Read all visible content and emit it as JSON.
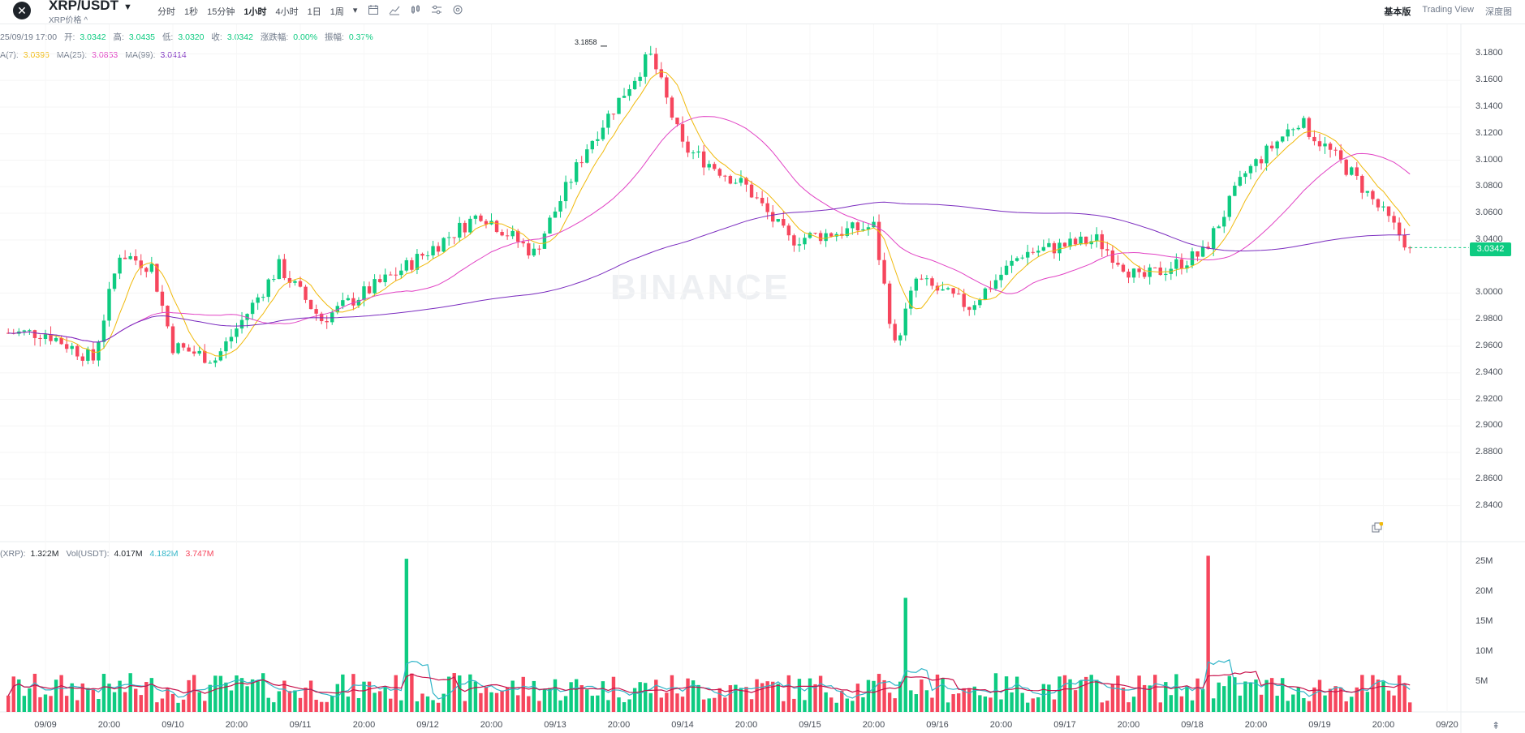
{
  "header": {
    "close_icon": "close-icon",
    "pair": "XRP/USDT",
    "pair_caret": "▼",
    "pair_sub": "XRP价格 ^",
    "intervals": [
      {
        "label": "分时",
        "active": false
      },
      {
        "label": "1秒",
        "active": false
      },
      {
        "label": "15分钟",
        "active": false
      },
      {
        "label": "1小时",
        "active": true
      },
      {
        "label": "4小时",
        "active": false
      },
      {
        "label": "1日",
        "active": false
      },
      {
        "label": "1周",
        "active": false
      },
      {
        "label": "▾",
        "active": false
      }
    ],
    "tool_icons": [
      "calendar-icon",
      "line-chart-icon",
      "candle-icon",
      "settings-sliders-icon",
      "gear-icon"
    ],
    "views": [
      {
        "label": "基本版",
        "active": true
      },
      {
        "label": "Trading View",
        "active": false
      },
      {
        "label": "深度图",
        "active": false
      }
    ]
  },
  "ohlc": {
    "date": "25/09/19 17:00",
    "open_label": "开:",
    "open": "3.0342",
    "high_label": "高:",
    "high": "3.0435",
    "low_label": "低:",
    "low": "3.0320",
    "close_label": "收:",
    "close": "3.0342",
    "change_label": "涨跌幅:",
    "change": "0.00%",
    "amp_label": "振幅:",
    "amp": "0.37%"
  },
  "ma": {
    "ma7_label": "A(7):",
    "ma7": "3.0396",
    "ma25_label": "MA(25):",
    "ma25": "3.0853",
    "ma99_label": "MA(99):",
    "ma99": "3.0414"
  },
  "vol": {
    "vol_xrp_label": "(XRP):",
    "vol_xrp": "1.322M",
    "vol_usdt_label": "Vol(USDT):",
    "vol_usdt": "4.017M",
    "ma_a": "4.182M",
    "ma_b": "3.747M"
  },
  "price_axis": [
    "3.1800",
    "3.1600",
    "3.1400",
    "3.1200",
    "3.1000",
    "3.0800",
    "3.0600",
    "3.0400",
    "3.0000",
    "2.9800",
    "2.9600",
    "2.9400",
    "2.9200",
    "2.9000",
    "2.8800",
    "2.8600",
    "2.8400"
  ],
  "current_price": "3.0342",
  "high_marker": "3.1858",
  "volume_axis": [
    "25M",
    "20M",
    "15M",
    "10M",
    "5M"
  ],
  "time_axis": [
    "09/09",
    "20:00",
    "09/10",
    "20:00",
    "09/11",
    "20:00",
    "09/12",
    "20:00",
    "09/13",
    "20:00",
    "09/14",
    "20:00",
    "09/15",
    "20:00",
    "09/16",
    "20:00",
    "09/17",
    "20:00",
    "09/18",
    "20:00",
    "09/19",
    "20:00",
    "09/20"
  ],
  "watermark": "BINANCE",
  "colors": {
    "up": "#0ecb81",
    "down": "#f6465d",
    "ma7": "#f0b90b",
    "ma25": "#e142c4",
    "ma99": "#7b2cbf",
    "vol_ma1": "#31b5c8",
    "vol_ma2": "#c8104a"
  },
  "chart_data": {
    "type": "candlestick",
    "pair": "XRP/USDT",
    "interval": "1小时",
    "ylim": [
      2.83,
      3.19
    ],
    "volume_ylim": [
      0,
      27
    ],
    "x_range": [
      "09/08 ~18:00",
      "09/19 17:00"
    ],
    "notable": {
      "period_high": 3.1858,
      "last_close": 3.0342
    },
    "approx_hourly_path": [
      {
        "t": "09/09 00:00",
        "close": 2.97
      },
      {
        "t": "09/09 09:00",
        "close": 2.95
      },
      {
        "t": "09/09 14:00",
        "close": 3.03
      },
      {
        "t": "09/09 20:00",
        "close": 3.02
      },
      {
        "t": "09/10 00:00",
        "close": 2.96
      },
      {
        "t": "09/10 08:00",
        "close": 2.95
      },
      {
        "t": "09/10 20:00",
        "close": 3.02
      },
      {
        "t": "09/11 04:00",
        "close": 2.98
      },
      {
        "t": "09/11 20:00",
        "close": 3.02
      },
      {
        "t": "09/12 10:00",
        "close": 3.06
      },
      {
        "t": "09/12 20:00",
        "close": 3.03
      },
      {
        "t": "09/13 06:00",
        "close": 3.11
      },
      {
        "t": "09/13 18:00",
        "close": 3.18
      },
      {
        "t": "09/14 00:00",
        "close": 3.11
      },
      {
        "t": "09/14 12:00",
        "close": 3.08
      },
      {
        "t": "09/14 20:00",
        "close": 3.04
      },
      {
        "t": "09/15 12:00",
        "close": 3.05
      },
      {
        "t": "09/15 16:00",
        "close": 2.96
      },
      {
        "t": "09/15 20:00",
        "close": 3.01
      },
      {
        "t": "09/16 06:00",
        "close": 2.99
      },
      {
        "t": "09/16 16:00",
        "close": 3.03
      },
      {
        "t": "09/17 06:00",
        "close": 3.04
      },
      {
        "t": "09/17 14:00",
        "close": 3.01
      },
      {
        "t": "09/18 02:00",
        "close": 3.03
      },
      {
        "t": "09/18 10:00",
        "close": 3.09
      },
      {
        "t": "09/18 20:00",
        "close": 3.13
      },
      {
        "t": "09/19 06:00",
        "close": 3.09
      },
      {
        "t": "09/19 17:00",
        "close": 3.0342
      }
    ],
    "volume_spikes_M": [
      {
        "t": "09/11 20:00",
        "v": 25.5
      },
      {
        "t": "09/15 18:00",
        "v": 19
      },
      {
        "t": "09/18 03:00",
        "v": 26
      }
    ]
  }
}
